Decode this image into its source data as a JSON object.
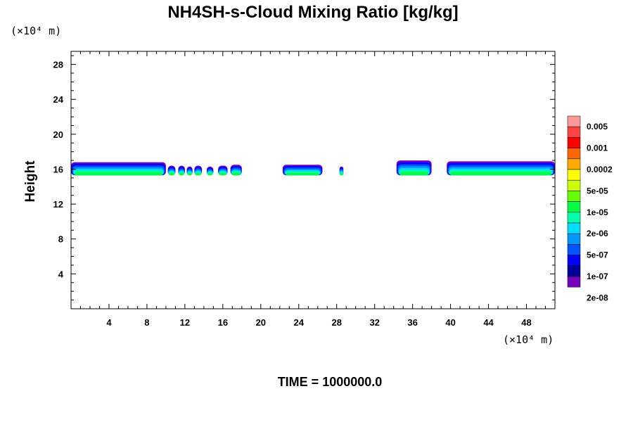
{
  "chart_data": {
    "type": "heatmap",
    "title": "NH4SH-s-Cloud Mixing Ratio [kg/kg]",
    "xlabel": "",
    "ylabel": "Height",
    "x_unit_label": "(×10⁴ m)",
    "y_unit_label": "(×10⁴ m)",
    "xlim": [
      0,
      51
    ],
    "ylim": [
      0,
      29.5
    ],
    "x_ticks": [
      4,
      8,
      12,
      16,
      20,
      24,
      28,
      32,
      36,
      40,
      44,
      48
    ],
    "y_ticks": [
      4,
      8,
      12,
      16,
      20,
      24,
      28
    ],
    "x_tick_labels": [
      "4",
      "8",
      "12",
      "16",
      "20",
      "24",
      "28",
      "32",
      "36",
      "40",
      "44",
      "48"
    ],
    "y_tick_labels": [
      "4",
      "8",
      "12",
      "16",
      "20",
      "24",
      "28"
    ],
    "footer": "TIME = 1000000.0",
    "colorbar": {
      "colors": [
        "#ff9999",
        "#ff4444",
        "#ff0000",
        "#ff6600",
        "#ffaa00",
        "#ffff00",
        "#ccff00",
        "#66ff00",
        "#00ff44",
        "#00ffaa",
        "#00ddff",
        "#0099ff",
        "#0055ff",
        "#0000ff",
        "#000099",
        "#7700bb"
      ],
      "labels": [
        "0.005",
        "0.001",
        "0.0002",
        "5e-05",
        "1e-05",
        "2e-06",
        "5e-07",
        "1e-07",
        "2e-08"
      ]
    },
    "cloud_layer": {
      "base": 15.3,
      "top_max": 17.0,
      "segments": [
        {
          "x0": 0.0,
          "x1": 10.0,
          "top": 16.8
        },
        {
          "x0": 10.2,
          "x1": 11.0,
          "top": 16.4
        },
        {
          "x0": 11.3,
          "x1": 12.0,
          "top": 16.4
        },
        {
          "x0": 12.2,
          "x1": 12.8,
          "top": 16.3
        },
        {
          "x0": 13.0,
          "x1": 13.8,
          "top": 16.4
        },
        {
          "x0": 14.3,
          "x1": 15.0,
          "top": 16.3
        },
        {
          "x0": 15.5,
          "x1": 16.5,
          "top": 16.4
        },
        {
          "x0": 16.8,
          "x1": 18.0,
          "top": 16.5
        },
        {
          "x0": 22.3,
          "x1": 26.5,
          "top": 16.5
        },
        {
          "x0": 28.3,
          "x1": 28.7,
          "top": 16.3
        },
        {
          "x0": 34.3,
          "x1": 38.0,
          "top": 17.0
        },
        {
          "x0": 39.6,
          "x1": 51.0,
          "top": 16.9
        }
      ]
    }
  }
}
